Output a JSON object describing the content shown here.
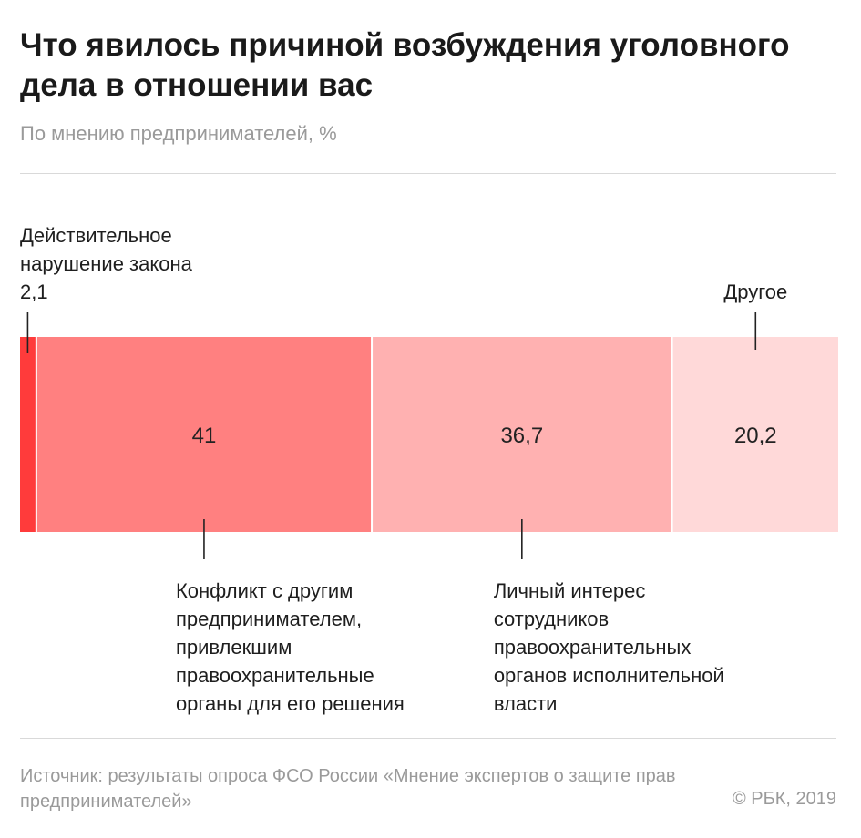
{
  "header": {
    "title": "Что явилось причиной возбуждения уголовного дела в отношении вас",
    "subtitle": "По мнению предпринимателей, %"
  },
  "chart_data": {
    "type": "bar",
    "orientation": "stacked-horizontal-100",
    "segments": [
      {
        "label": [
          "Действительное",
          "нарушение закона"
        ],
        "value": 2.1,
        "value_text": "2,1",
        "color": "#ff3b3b",
        "label_position": "top",
        "value_inside": false
      },
      {
        "label": [
          "Конфликт с другим",
          "предпринимателем,",
          "привлекшим",
          "правоохранительные",
          "органы для его решения"
        ],
        "value": 41,
        "value_text": "41",
        "color": "#ff8080",
        "label_position": "bottom",
        "value_inside": true
      },
      {
        "label": [
          "Личный интерес",
          "сотрудников",
          "правоохранительных",
          "органов исполнительной",
          "власти"
        ],
        "value": 36.7,
        "value_text": "36,7",
        "color": "#ffb1b1",
        "label_position": "bottom",
        "value_inside": true
      },
      {
        "label": [
          "Другое"
        ],
        "value": 20.2,
        "value_text": "20,2",
        "color": "#ffd9d9",
        "label_position": "top",
        "value_inside": true
      }
    ],
    "xlim": [
      0,
      100
    ]
  },
  "footer": {
    "source": "Источник: результаты опроса ФСО России «Мнение экспертов о защите прав предпринимателей»",
    "copyright": "© РБК, 2019"
  }
}
